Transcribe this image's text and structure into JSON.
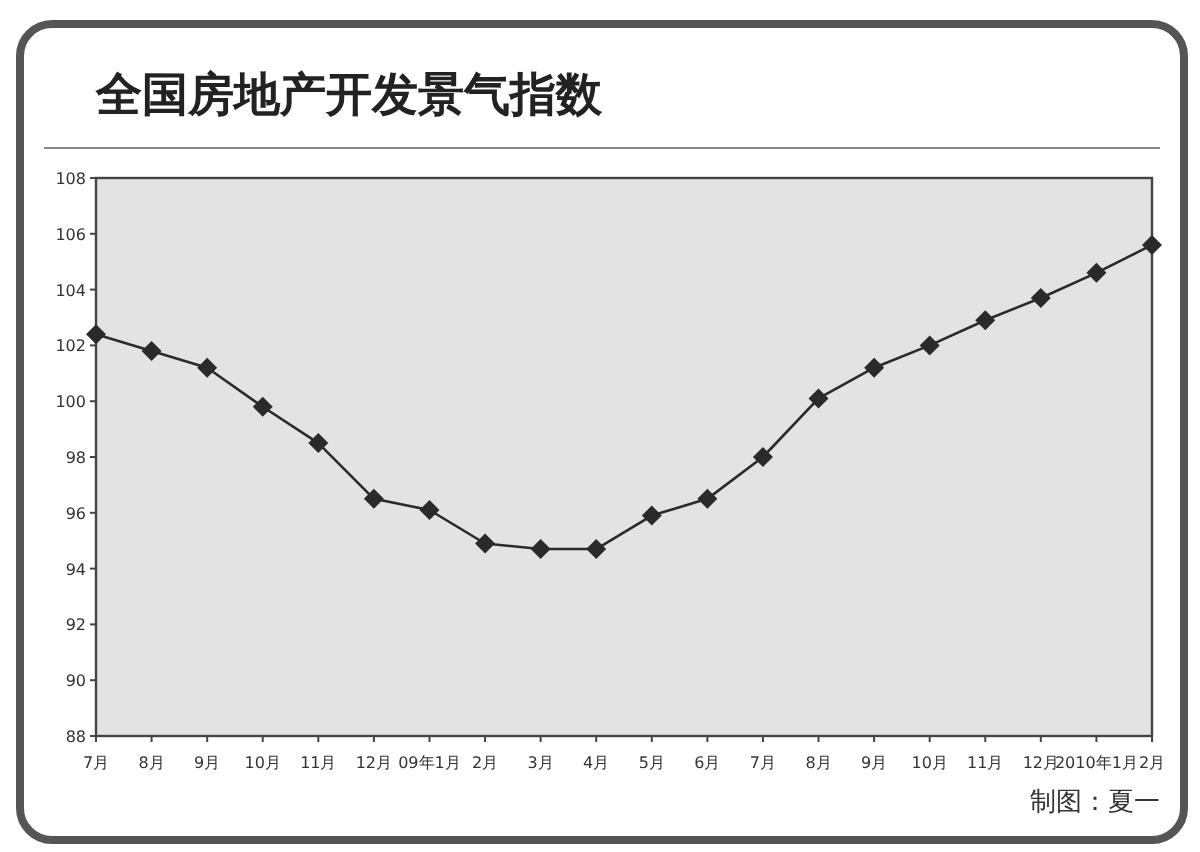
{
  "chart_data": {
    "type": "line",
    "title": "全国房地产开发景气指数",
    "categories": [
      "7月",
      "8月",
      "9月",
      "10月",
      "11月",
      "12月",
      "09年1月",
      "2月",
      "3月",
      "4月",
      "5月",
      "6月",
      "7月",
      "8月",
      "9月",
      "10月",
      "11月",
      "12月",
      "2010年1月",
      "2月"
    ],
    "values": [
      102.4,
      101.8,
      101.2,
      99.8,
      98.5,
      96.5,
      96.1,
      94.9,
      94.7,
      94.7,
      95.9,
      96.5,
      98.0,
      100.1,
      101.2,
      102.0,
      102.9,
      103.7,
      104.6,
      105.6
    ],
    "color": "#2a2a2a",
    "marker": "diamond",
    "line_style": "solid",
    "grid": false,
    "ylim": [
      88,
      108
    ],
    "yticks": [
      88,
      90,
      92,
      94,
      96,
      98,
      100,
      102,
      104,
      106,
      108
    ],
    "annotations": [
      "制图：夏一"
    ]
  }
}
